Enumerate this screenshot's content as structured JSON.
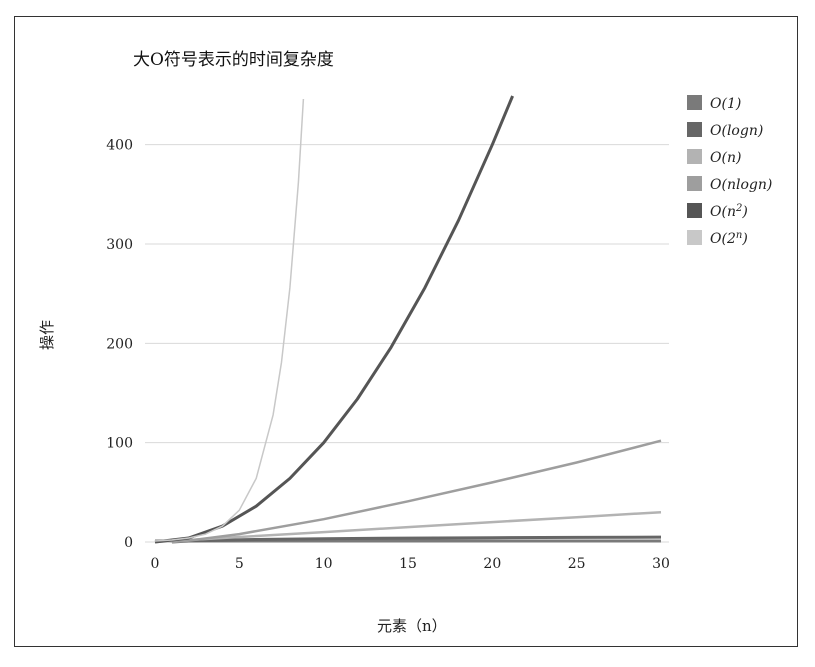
{
  "chart_data": {
    "type": "line",
    "title": "大O符号表示的时间复杂度",
    "xlabel": "元素（n）",
    "ylabel": "操作",
    "xlim": [
      0,
      30
    ],
    "ylim": [
      0,
      450
    ],
    "x_ticks": [
      0,
      5,
      10,
      15,
      20,
      25,
      30
    ],
    "y_ticks": [
      0,
      100,
      200,
      300,
      400
    ],
    "grid": true,
    "legend_position": "right",
    "series": [
      {
        "name": "O(1)",
        "color": "#7a7a7a",
        "x": [
          0,
          5,
          10,
          15,
          20,
          25,
          30
        ],
        "values": [
          1,
          1,
          1,
          1,
          1,
          1,
          1
        ]
      },
      {
        "name": "O(logn)",
        "color": "#666666",
        "x": [
          1,
          2,
          5,
          10,
          15,
          20,
          25,
          30
        ],
        "values": [
          0,
          1,
          2.3,
          3.3,
          3.9,
          4.3,
          4.6,
          4.9
        ]
      },
      {
        "name": "O(n)",
        "color": "#b3b3b3",
        "x": [
          0,
          5,
          10,
          15,
          20,
          25,
          30
        ],
        "values": [
          0,
          5,
          10,
          15,
          20,
          25,
          30
        ]
      },
      {
        "name": "O(nlogn)",
        "color": "#9e9e9e",
        "x": [
          1,
          2,
          5,
          10,
          15,
          20,
          25,
          30
        ],
        "values": [
          0,
          1.4,
          8,
          23,
          41,
          60,
          80,
          102
        ]
      },
      {
        "name": "O(n²)",
        "color": "#555555",
        "x": [
          0,
          2,
          4,
          6,
          8,
          10,
          12,
          14,
          16,
          18,
          20,
          21.2
        ],
        "values": [
          0,
          4,
          16,
          36,
          64,
          100,
          144,
          196,
          256,
          324,
          400,
          449
        ]
      },
      {
        "name": "O(2ⁿ)",
        "color": "#c8c8c8",
        "x": [
          0,
          1,
          2,
          3,
          4,
          5,
          6,
          7,
          7.5,
          8,
          8.5,
          8.8
        ],
        "values": [
          1,
          2,
          4,
          8,
          16,
          32,
          64,
          128,
          181,
          256,
          362,
          446
        ]
      }
    ]
  },
  "legend": [
    {
      "prefix": "O(",
      "main": "1",
      "sup": "",
      "suffix": ")"
    },
    {
      "prefix": "O(",
      "main": "logn",
      "sup": "",
      "suffix": ")"
    },
    {
      "prefix": "O(",
      "main": "n",
      "sup": "",
      "suffix": ")"
    },
    {
      "prefix": "O(",
      "main": "nlogn",
      "sup": "",
      "suffix": ")"
    },
    {
      "prefix": "O(",
      "main": "n",
      "sup": "2",
      "suffix": ")"
    },
    {
      "prefix": "O(",
      "main": "2",
      "sup": "n",
      "suffix": ")"
    }
  ]
}
